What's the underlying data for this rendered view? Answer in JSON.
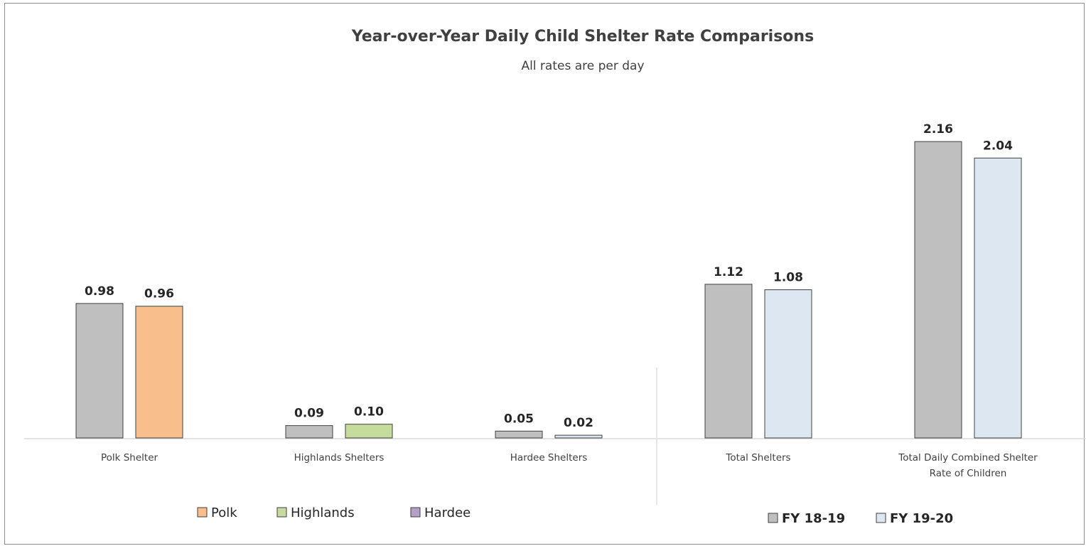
{
  "chart_data": {
    "type": "bar",
    "title": "Year-over-Year Daily Child Shelter Rate Comparisons",
    "subtitle": "All rates are per day",
    "categories": [
      [
        "Polk Shelter"
      ],
      [
        "Highlands Shelters"
      ],
      [
        "Hardee Shelters"
      ],
      [
        "Total Shelters"
      ],
      [
        "Total Daily Combined Shelter",
        "Rate of Children"
      ]
    ],
    "series": [
      {
        "name": "FY 18-19",
        "values": [
          0.98,
          0.09,
          0.05,
          1.12,
          2.16
        ],
        "labels": [
          "0.98",
          "0.09",
          "0.05",
          "1.12",
          "2.16"
        ],
        "colors": [
          "#bfbfbf",
          "#bfbfbf",
          "#bfbfbf",
          "#bfbfbf",
          "#bfbfbf"
        ]
      },
      {
        "name": "FY 19-20",
        "values": [
          0.96,
          0.1,
          0.02,
          1.08,
          2.04
        ],
        "labels": [
          "0.96",
          "0.10",
          "0.02",
          "1.08",
          "2.04"
        ],
        "colors": [
          "#f8be8c",
          "#c5dc9c",
          "#dde7f1",
          "#dde7f1",
          "#dde7f1"
        ]
      }
    ],
    "ylim": [
      0,
      2.16
    ],
    "grid": false,
    "legends": [
      {
        "placement": "bottom-left",
        "entries": [
          {
            "label": "Polk",
            "color": "#f8be8c"
          },
          {
            "label": "Highlands",
            "color": "#c5dc9c"
          },
          {
            "label": "Hardee",
            "color": "#b4a0c6"
          }
        ]
      },
      {
        "placement": "bottom-right",
        "entries": [
          {
            "label": "FY 18-19",
            "color": "#bfbfbf"
          },
          {
            "label": "FY 19-20",
            "color": "#dde7f1"
          }
        ]
      }
    ]
  }
}
